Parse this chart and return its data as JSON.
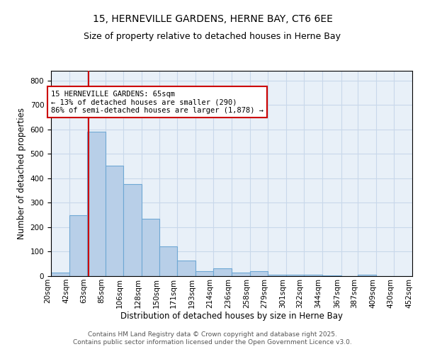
{
  "title1": "15, HERNEVILLE GARDENS, HERNE BAY, CT6 6EE",
  "title2": "Size of property relative to detached houses in Herne Bay",
  "xlabel": "Distribution of detached houses by size in Herne Bay",
  "ylabel": "Number of detached properties",
  "bin_edges": [
    20,
    42,
    63,
    85,
    106,
    128,
    150,
    171,
    193,
    214,
    236,
    258,
    279,
    301,
    322,
    344,
    367,
    387,
    409,
    430,
    452
  ],
  "bar_heights": [
    15,
    248,
    590,
    452,
    378,
    235,
    122,
    65,
    20,
    32,
    15,
    20,
    5,
    5,
    5,
    3,
    0,
    5,
    0,
    0
  ],
  "bar_color": "#b8cfe8",
  "bar_edge_color": "#6fa8d4",
  "red_line_x": 65,
  "red_line_color": "#cc0000",
  "annotation_text": "15 HERNEVILLE GARDENS: 65sqm\n← 13% of detached houses are smaller (290)\n86% of semi-detached houses are larger (1,878) →",
  "annotation_box_color": "#ffffff",
  "annotation_box_edge": "#cc0000",
  "ylim": [
    0,
    840
  ],
  "yticks": [
    0,
    100,
    200,
    300,
    400,
    500,
    600,
    700,
    800
  ],
  "grid_color": "#c8d8ea",
  "background_color": "#e8f0f8",
  "fig_background": "#ffffff",
  "footer1": "Contains HM Land Registry data © Crown copyright and database right 2025.",
  "footer2": "Contains public sector information licensed under the Open Government Licence v3.0.",
  "title1_fontsize": 10,
  "title2_fontsize": 9,
  "axis_label_fontsize": 8.5,
  "tick_fontsize": 7.5,
  "annotation_fontsize": 7.5,
  "footer_fontsize": 6.5
}
